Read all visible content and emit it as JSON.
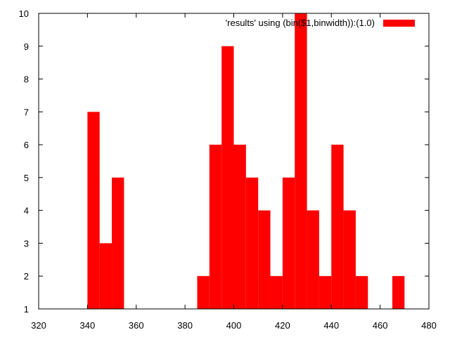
{
  "chart_data": {
    "type": "bar",
    "legend": {
      "label": "'results' using (bin($1,binwidth)):(1.0)",
      "placement": "top-right",
      "color": "#ff0000"
    },
    "bin_width": 5,
    "x": [
      340,
      345,
      350,
      385,
      390,
      395,
      400,
      405,
      410,
      415,
      420,
      425,
      430,
      435,
      440,
      445,
      450,
      465
    ],
    "values": [
      7,
      3,
      5,
      2,
      6,
      9,
      6,
      5,
      4,
      2,
      5,
      10,
      4,
      2,
      6,
      4,
      2,
      2
    ],
    "xlim": [
      320,
      480
    ],
    "ylim": [
      1,
      10
    ],
    "xticks": [
      320,
      340,
      360,
      380,
      400,
      420,
      440,
      460,
      480
    ],
    "yticks": [
      1,
      2,
      3,
      4,
      5,
      6,
      7,
      8,
      9,
      10
    ],
    "grid": false,
    "bar_color": "#ff0000",
    "title": "",
    "xlabel": "",
    "ylabel": ""
  }
}
